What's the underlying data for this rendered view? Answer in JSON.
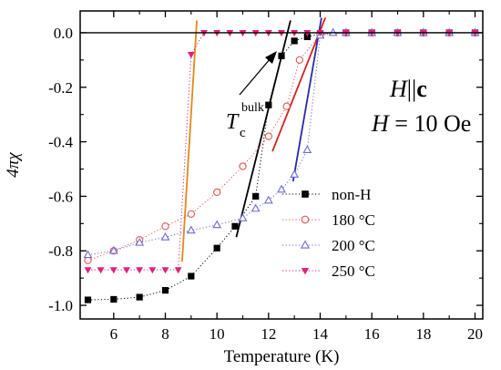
{
  "chart_data": {
    "type": "scatter",
    "xlabel": "Temperature (K)",
    "ylabel": "4πχ",
    "xlim": [
      4.7,
      20.3
    ],
    "ylim": [
      -1.05,
      0.08
    ],
    "xticks": [
      6,
      8,
      10,
      12,
      14,
      16,
      18,
      20
    ],
    "xtick_labels": [
      "6",
      "8",
      "10",
      "12",
      "14",
      "16",
      "18",
      "20"
    ],
    "yticks": [
      0.0,
      -0.2,
      -0.4,
      -0.6,
      -0.8,
      -1.0
    ],
    "ytick_labels": [
      "0.0",
      "-0.2",
      "-0.4",
      "-0.6",
      "-0.8",
      "-1.0"
    ],
    "grid": false,
    "legend_position": "bottom-right",
    "annotations": {
      "condition_H": "H",
      "condition_par": "||",
      "condition_c": "c",
      "field_H": "H",
      "field_value": " = 10 Oe",
      "tc_T": "T",
      "tc_sub": "c",
      "tc_sup": "bulk"
    },
    "series": [
      {
        "name": "non-H",
        "marker": "filled-square",
        "color": "#000000",
        "line_style": "dotted",
        "x": [
          5,
          6,
          7,
          8,
          9,
          10,
          10.7,
          11.5,
          12,
          12.5,
          13,
          13.5,
          14,
          15,
          16,
          17,
          18,
          19,
          20
        ],
        "y": [
          -0.98,
          -0.978,
          -0.97,
          -0.945,
          -0.893,
          -0.79,
          -0.71,
          -0.6,
          -0.265,
          -0.085,
          -0.03,
          -0.015,
          -0.005,
          0,
          0,
          0,
          0,
          0,
          0
        ]
      },
      {
        "name": "180 °C",
        "marker": "open-circle",
        "color": "#e05555",
        "line_style": "dotted",
        "x": [
          5,
          6,
          7,
          8,
          9,
          10,
          11,
          12,
          12.7,
          13.2,
          14,
          15,
          16,
          17,
          18,
          19,
          20
        ],
        "y": [
          -0.835,
          -0.8,
          -0.76,
          -0.71,
          -0.665,
          -0.585,
          -0.49,
          -0.38,
          -0.27,
          -0.1,
          -0.005,
          0,
          0,
          0,
          0,
          0,
          0
        ]
      },
      {
        "name": "200 °C",
        "marker": "open-triangle",
        "color": "#6b6bd4",
        "line_style": "dotted",
        "x": [
          5,
          6,
          7,
          8,
          9,
          10,
          11,
          11.5,
          12,
          12.5,
          13,
          13.5,
          14,
          14.5,
          15,
          16,
          17,
          18,
          19,
          20
        ],
        "y": [
          -0.815,
          -0.8,
          -0.77,
          -0.75,
          -0.725,
          -0.705,
          -0.68,
          -0.645,
          -0.615,
          -0.575,
          -0.52,
          -0.43,
          -0.01,
          0,
          0,
          0,
          0,
          0,
          0,
          0
        ]
      },
      {
        "name": "250 °C",
        "marker": "filled-triangle-down",
        "color": "#e0227a",
        "line_style": "dotted",
        "x": [
          5,
          5.5,
          6,
          6.5,
          7,
          7.5,
          8,
          8.5,
          9,
          9.5,
          10,
          10.5,
          11,
          11.5,
          12,
          12.5,
          13,
          13.5,
          14,
          15,
          16,
          17,
          18,
          19,
          20
        ],
        "y": [
          -0.87,
          -0.87,
          -0.87,
          -0.87,
          -0.87,
          -0.87,
          -0.87,
          -0.87,
          -0.08,
          0,
          0,
          0,
          0,
          0,
          0,
          0,
          0,
          0,
          0,
          0,
          0,
          0,
          0,
          0,
          0
        ]
      }
    ],
    "fit_lines": [
      {
        "name": "non-H fit",
        "color": "#000000",
        "x": [
          10.75,
          12.85
        ],
        "y": [
          -0.75,
          0.045
        ]
      },
      {
        "name": "180 °C fit",
        "color": "#d62020",
        "x": [
          12.15,
          14.2
        ],
        "y": [
          -0.435,
          0.055
        ]
      },
      {
        "name": "200 °C fit",
        "color": "#2a2aa8",
        "x": [
          12.95,
          14.05
        ],
        "y": [
          -0.545,
          0.055
        ]
      },
      {
        "name": "250 °C fit",
        "color": "#e08a1a",
        "x": [
          8.65,
          9.22
        ],
        "y": [
          -0.84,
          0.045
        ]
      }
    ]
  }
}
